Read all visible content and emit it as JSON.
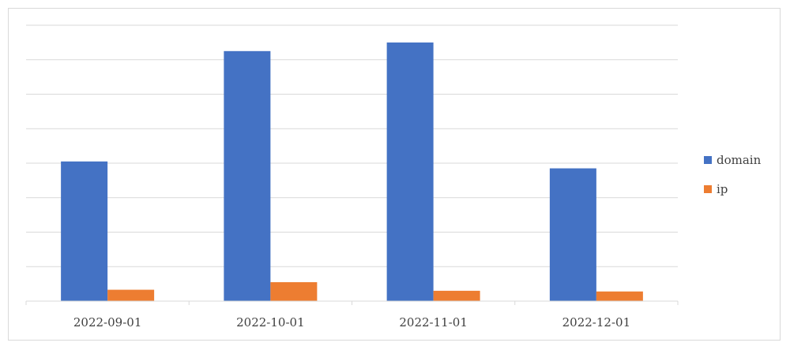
{
  "chart_data": {
    "type": "bar",
    "categories": [
      "2022-09-01",
      "2022-10-01",
      "2022-11-01",
      "2022-12-01"
    ],
    "series": [
      {
        "name": "domain",
        "values": [
          40.5,
          72.5,
          75.0,
          38.5
        ],
        "color": "#4472c4"
      },
      {
        "name": "ip",
        "values": [
          3.3,
          5.5,
          3.0,
          2.8
        ],
        "color": "#ed7d31"
      }
    ],
    "ylim": [
      0,
      80
    ],
    "gridlines": 8,
    "grid": true,
    "y_tick_labels_shown": false,
    "legend": "right"
  }
}
